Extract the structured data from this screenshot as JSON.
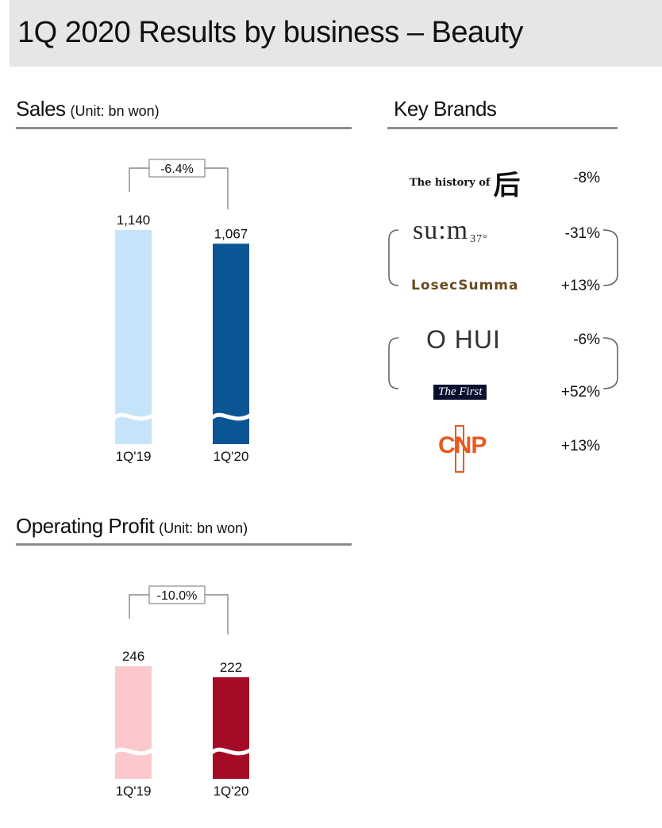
{
  "page": {
    "title": "1Q 2020 Results by business – Beauty"
  },
  "sales": {
    "heading": "Sales",
    "unit": "(Unit: bn won)"
  },
  "operating_profit": {
    "heading": "Operating Profit",
    "unit": "(Unit: bn won)"
  },
  "key_brands": {
    "heading": "Key Brands",
    "brands": [
      {
        "name": "The history of 后",
        "logo_text": "The history of",
        "logo_glyph": "后",
        "change": "-8%"
      },
      {
        "name": "su:m37",
        "logo_text": "su:m",
        "logo_sub": "37°",
        "change": "-31%"
      },
      {
        "name": "LosecSumma",
        "logo_text": "LosecSumma",
        "change": "+13%"
      },
      {
        "name": "O HUI",
        "logo_text": "O HUI",
        "change": "-6%"
      },
      {
        "name": "The First",
        "logo_text": "The First",
        "change": "+52%"
      },
      {
        "name": "CNP",
        "logo_text": "CNP",
        "change": "+13%"
      }
    ]
  },
  "colors": {
    "sales_prev": "#c5e4f9",
    "sales_curr": "#0c5594",
    "op_prev": "#fbc9cc",
    "op_curr": "#a50a26",
    "rule": "#8c8c8c"
  },
  "chart_data": [
    {
      "type": "bar",
      "title": "Sales",
      "categories": [
        "1Q'19",
        "1Q'20"
      ],
      "values": [
        1140,
        1067
      ],
      "value_labels": [
        "1,140",
        "1,067"
      ],
      "change_label": "-6.4%",
      "ylabel": "",
      "broken_axis": true
    },
    {
      "type": "bar",
      "title": "Operating Profit",
      "categories": [
        "1Q'19",
        "1Q'20"
      ],
      "values": [
        246,
        222
      ],
      "value_labels": [
        "246",
        "222"
      ],
      "change_label": "-10.0%",
      "ylabel": "",
      "broken_axis": true
    }
  ]
}
